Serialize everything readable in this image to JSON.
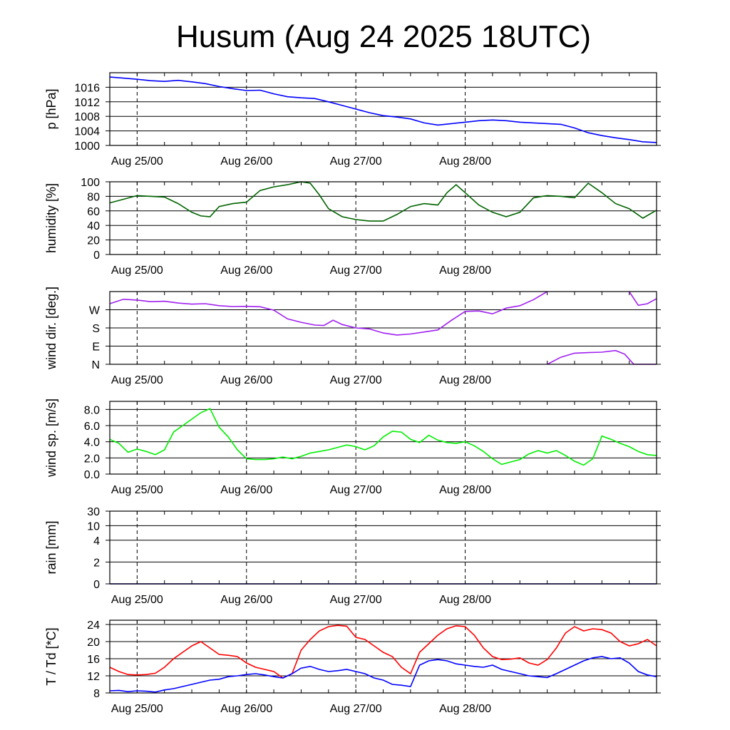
{
  "title": "Husum (Aug 24 2025 18UTC)",
  "chart_data": [
    {
      "type": "line",
      "ylabel": "p [hPa]",
      "ylim": [
        1000,
        1020
      ],
      "yticks": [
        1000,
        1004,
        1008,
        1012,
        1016
      ],
      "ytick_labels": [
        "1000",
        "1004",
        "1008",
        "1012",
        "1016"
      ],
      "xtick_labels": [
        "Aug 25/00",
        "Aug 26/00",
        "Aug 27/00",
        "Aug 28/00"
      ],
      "x_unit": "hours since Aug 24 18UTC",
      "series": [
        {
          "color": "#0000ff",
          "x": [
            0,
            3,
            6,
            9,
            12,
            15,
            18,
            21,
            24,
            27,
            30,
            33,
            36,
            39,
            42,
            45,
            48,
            51,
            54,
            57,
            60,
            63,
            66,
            69,
            72,
            75,
            78,
            81,
            84,
            87,
            90,
            93,
            96,
            99,
            102,
            105,
            108,
            111,
            114,
            117,
            120
          ],
          "y": [
            1018.8,
            1018.5,
            1018.2,
            1017.8,
            1017.6,
            1017.9,
            1017.5,
            1017.0,
            1016.2,
            1015.6,
            1015.1,
            1015.2,
            1014.2,
            1013.4,
            1013.1,
            1012.9,
            1012.0,
            1011.0,
            1010.0,
            1009.0,
            1008.2,
            1007.8,
            1007.3,
            1006.2,
            1005.6,
            1006.0,
            1006.4,
            1006.8,
            1007.0,
            1006.8,
            1006.4,
            1006.2,
            1006.0,
            1005.8,
            1004.8,
            1003.5,
            1002.7,
            1002.1,
            1001.6,
            1001.0,
            1000.8
          ]
        }
      ]
    },
    {
      "type": "line",
      "ylabel": "humidity [%]",
      "ylim": [
        0,
        100
      ],
      "yticks": [
        0,
        20,
        40,
        60,
        80,
        100
      ],
      "ytick_labels": [
        "0",
        "20",
        "40",
        "60",
        "80",
        "100"
      ],
      "xtick_labels": [
        "Aug 25/00",
        "Aug 26/00",
        "Aug 27/00",
        "Aug 28/00"
      ],
      "series": [
        {
          "color": "#006400",
          "x": [
            0,
            3,
            6,
            9,
            12,
            15,
            18,
            20,
            22,
            24,
            27,
            30,
            33,
            36,
            39,
            42,
            44,
            46,
            48,
            51,
            54,
            57,
            60,
            63,
            66,
            69,
            72,
            74,
            76,
            78,
            81,
            84,
            87,
            90,
            93,
            96,
            99,
            102,
            105,
            108,
            111,
            114,
            117,
            120
          ],
          "y": [
            71,
            76,
            81,
            80,
            79,
            70,
            58,
            53,
            52,
            66,
            70,
            72,
            88,
            93,
            96,
            100,
            98,
            82,
            63,
            52,
            48,
            46,
            46,
            55,
            66,
            70,
            68,
            85,
            96,
            85,
            68,
            58,
            52,
            58,
            78,
            81,
            80,
            78,
            98,
            85,
            70,
            63,
            50,
            61
          ]
        }
      ]
    },
    {
      "type": "line",
      "ylabel": "wind dir. [deg.]",
      "ylim": [
        0,
        360
      ],
      "yticks": [
        0,
        90,
        180,
        270
      ],
      "ytick_labels": [
        "N",
        "E",
        "S",
        "W"
      ],
      "xtick_labels": [
        "Aug 25/00",
        "Aug 26/00",
        "Aug 27/00",
        "Aug 28/00"
      ],
      "series": [
        {
          "color": "#a020f0",
          "x": [
            0,
            3,
            6,
            9,
            12,
            15,
            18,
            21,
            24,
            27,
            30,
            33,
            36,
            39,
            42,
            45,
            47,
            49,
            51,
            54,
            57,
            60,
            63,
            66,
            69,
            72,
            75,
            78,
            81,
            84,
            87,
            90,
            93,
            96
          ],
          "y": [
            300,
            322,
            318,
            310,
            312,
            303,
            298,
            300,
            290,
            286,
            287,
            285,
            268,
            225,
            208,
            194,
            192,
            218,
            197,
            180,
            175,
            155,
            145,
            150,
            160,
            170,
            218,
            262,
            264,
            250,
            278,
            290,
            320,
            360
          ]
        },
        {
          "color": "#a020f0",
          "x": [
            96,
            99,
            102,
            105,
            108,
            111,
            113,
            115,
            117,
            120
          ],
          "y": [
            0,
            35,
            55,
            58,
            60,
            68,
            50,
            0,
            0,
            0
          ]
        },
        {
          "color": "#a020f0",
          "x": [
            114,
            116,
            118,
            120
          ],
          "y": [
            360,
            292,
            300,
            325
          ]
        }
      ]
    },
    {
      "type": "line",
      "ylabel": "wind sp. [m/s]",
      "ylim": [
        0,
        9
      ],
      "yticks": [
        0,
        2,
        4,
        6,
        8
      ],
      "ytick_labels": [
        "0.0",
        "2.0",
        "4.0",
        "6.0",
        "8.0"
      ],
      "xtick_labels": [
        "Aug 25/00",
        "Aug 26/00",
        "Aug 27/00",
        "Aug 28/00"
      ],
      "series": [
        {
          "color": "#00ee00",
          "x": [
            0,
            2,
            4,
            6,
            8,
            10,
            12,
            14,
            16,
            18,
            20,
            22,
            24,
            26,
            28,
            30,
            32,
            34,
            36,
            38,
            40,
            42,
            44,
            46,
            48,
            50,
            52,
            54,
            56,
            58,
            60,
            62,
            64,
            66,
            68,
            70,
            72,
            74,
            76,
            78,
            80,
            82,
            84,
            86,
            88,
            90,
            92,
            94,
            96,
            98,
            100,
            102,
            104,
            106,
            108,
            110,
            112,
            114,
            116,
            118,
            120
          ],
          "y": [
            4.3,
            3.8,
            2.7,
            3.1,
            2.8,
            2.4,
            3.0,
            5.2,
            6.0,
            6.8,
            7.6,
            8.1,
            5.8,
            4.6,
            3.0,
            1.9,
            1.8,
            1.8,
            1.9,
            2.1,
            1.9,
            2.2,
            2.6,
            2.8,
            3.0,
            3.3,
            3.6,
            3.4,
            3.0,
            3.5,
            4.6,
            5.3,
            5.2,
            4.3,
            3.9,
            4.8,
            4.2,
            3.9,
            3.8,
            4.0,
            3.5,
            2.8,
            1.9,
            1.2,
            1.5,
            1.8,
            2.5,
            2.9,
            2.6,
            2.9,
            2.3,
            1.6,
            1.1,
            1.9,
            4.7,
            4.3,
            3.8,
            3.4,
            2.8,
            2.4,
            2.3
          ]
        }
      ]
    },
    {
      "type": "line",
      "ylabel": "rain [mm]",
      "ylim": [
        0,
        30
      ],
      "yticks": [
        0,
        2,
        4,
        10,
        30
      ],
      "ytick_labels": [
        "0",
        "2",
        "4",
        "10",
        "30"
      ],
      "scale": "nonlinear",
      "xtick_labels": [
        "Aug 25/00",
        "Aug 26/00",
        "Aug 27/00",
        "Aug 28/00"
      ],
      "series": [
        {
          "color": "#0000aa",
          "x": [
            0,
            24,
            48,
            72,
            96,
            120
          ],
          "y": [
            0,
            0,
            0,
            0,
            0,
            0
          ]
        }
      ]
    },
    {
      "type": "line",
      "ylabel": "T / Td [*C]",
      "ylim": [
        8,
        25
      ],
      "yticks": [
        8,
        12,
        16,
        20,
        24
      ],
      "ytick_labels": [
        "8",
        "12",
        "16",
        "20",
        "24"
      ],
      "xtick_labels": [
        "Aug 25/00",
        "Aug 26/00",
        "Aug 27/00",
        "Aug 28/00"
      ],
      "series": [
        {
          "color": "#ff0000",
          "x": [
            0,
            2,
            4,
            6,
            8,
            10,
            12,
            14,
            16,
            18,
            20,
            22,
            24,
            26,
            28,
            30,
            32,
            34,
            36,
            38,
            40,
            42,
            44,
            46,
            48,
            50,
            52,
            54,
            56,
            58,
            60,
            62,
            64,
            66,
            68,
            70,
            72,
            74,
            76,
            78,
            80,
            82,
            84,
            86,
            88,
            90,
            92,
            94,
            96,
            98,
            100,
            102,
            104,
            106,
            108,
            110,
            112,
            114,
            116,
            118,
            120
          ],
          "y": [
            14.0,
            13.0,
            12.3,
            12.2,
            12.3,
            12.6,
            14.0,
            16.0,
            17.5,
            19.0,
            20.0,
            18.5,
            17.0,
            16.8,
            16.5,
            15.0,
            14.0,
            13.5,
            13.0,
            11.5,
            12.5,
            18.0,
            20.5,
            22.5,
            23.5,
            23.8,
            23.6,
            21.0,
            20.5,
            19.0,
            17.5,
            16.5,
            14.0,
            12.5,
            17.5,
            19.5,
            21.5,
            23.0,
            23.7,
            23.5,
            21.5,
            18.5,
            16.5,
            15.8,
            15.9,
            16.2,
            15.0,
            14.5,
            15.8,
            18.5,
            22.0,
            23.5,
            22.5,
            23.0,
            22.8,
            22.0,
            20.0,
            19.0,
            19.5,
            20.5,
            19.0
          ]
        },
        {
          "color": "#0000ff",
          "x": [
            0,
            2,
            4,
            6,
            8,
            10,
            12,
            14,
            16,
            18,
            20,
            22,
            24,
            26,
            28,
            30,
            32,
            34,
            36,
            38,
            40,
            42,
            44,
            46,
            48,
            50,
            52,
            54,
            56,
            58,
            60,
            62,
            64,
            66,
            68,
            70,
            72,
            74,
            76,
            78,
            80,
            82,
            84,
            86,
            88,
            90,
            92,
            94,
            96,
            98,
            100,
            102,
            104,
            106,
            108,
            110,
            112,
            114,
            116,
            118,
            120
          ],
          "y": [
            8.5,
            8.6,
            8.3,
            8.5,
            8.4,
            8.2,
            8.7,
            9.0,
            9.5,
            10.0,
            10.5,
            11.0,
            11.2,
            11.8,
            12.0,
            12.3,
            12.5,
            12.2,
            11.8,
            11.5,
            12.5,
            13.8,
            14.2,
            13.5,
            13.0,
            13.2,
            13.5,
            13.0,
            12.5,
            11.5,
            11.0,
            10.0,
            9.8,
            9.5,
            14.5,
            15.5,
            15.8,
            15.5,
            14.8,
            14.5,
            14.2,
            14.0,
            14.5,
            13.5,
            13.0,
            12.5,
            12.0,
            11.8,
            11.6,
            12.5,
            13.5,
            14.5,
            15.5,
            16.2,
            16.5,
            16.0,
            16.2,
            15.0,
            13.0,
            12.2,
            11.8
          ]
        }
      ]
    }
  ]
}
